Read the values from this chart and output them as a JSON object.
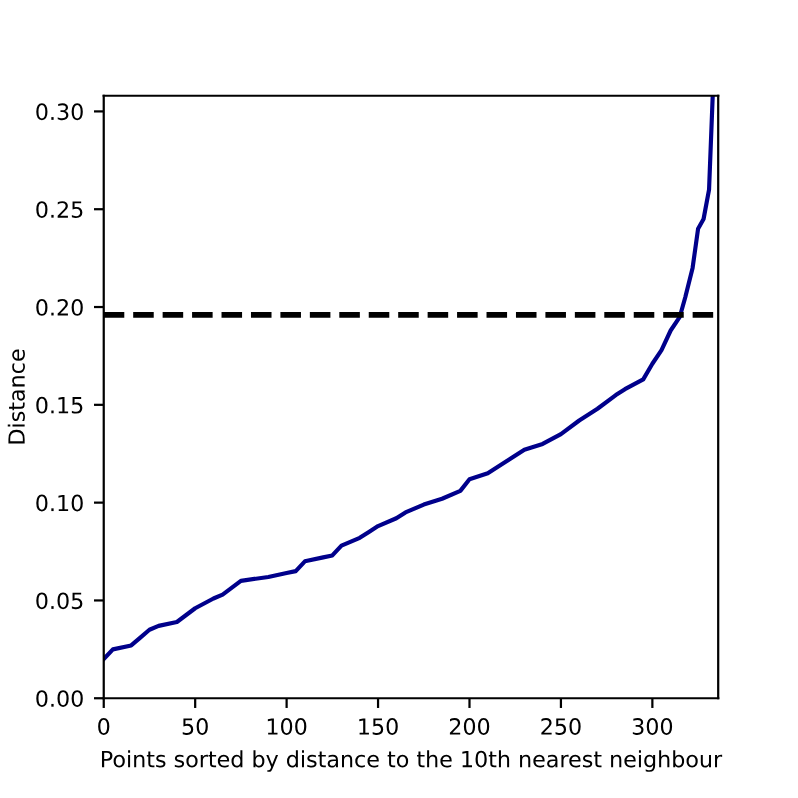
{
  "chart_data": {
    "type": "line",
    "xlabel": "Points sorted by distance to the 10th nearest neighbour",
    "ylabel": "Distance",
    "x": [
      0,
      5,
      15,
      20,
      25,
      30,
      40,
      50,
      60,
      65,
      75,
      90,
      100,
      105,
      110,
      120,
      125,
      130,
      140,
      145,
      150,
      160,
      165,
      175,
      185,
      195,
      200,
      210,
      220,
      230,
      240,
      250,
      260,
      270,
      280,
      285,
      295,
      300,
      305,
      310,
      315,
      318,
      322,
      325,
      328,
      331,
      333
    ],
    "series": [
      {
        "color": "#00008b",
        "values": [
          0.02,
          0.025,
          0.027,
          0.031,
          0.035,
          0.037,
          0.039,
          0.046,
          0.051,
          0.053,
          0.06,
          0.062,
          0.064,
          0.065,
          0.07,
          0.072,
          0.073,
          0.078,
          0.082,
          0.085,
          0.088,
          0.092,
          0.095,
          0.099,
          0.102,
          0.106,
          0.112,
          0.115,
          0.121,
          0.127,
          0.13,
          0.135,
          0.142,
          0.148,
          0.155,
          0.158,
          0.163,
          0.171,
          0.178,
          0.188,
          0.195,
          0.205,
          0.22,
          0.24,
          0.245,
          0.26,
          0.308
        ]
      }
    ],
    "xlim": [
      0,
      336
    ],
    "ylim": [
      0,
      0.308
    ],
    "xticks": [
      0,
      50,
      100,
      150,
      200,
      250,
      300
    ],
    "yticks": [
      {
        "value": 0,
        "label": "0.00"
      },
      {
        "value": 0.05,
        "label": "0.05"
      },
      {
        "value": 0.1,
        "label": "0.10"
      },
      {
        "value": 0.15,
        "label": "0.15"
      },
      {
        "value": 0.2,
        "label": "0.20"
      },
      {
        "value": 0.25,
        "label": "0.25"
      },
      {
        "value": 0.3,
        "label": "0.30"
      }
    ],
    "ref_lines": [
      {
        "axis": "y",
        "value": 0.196,
        "color": "#000000",
        "line_style": "dashed"
      }
    ],
    "grid": false,
    "legend": false
  }
}
